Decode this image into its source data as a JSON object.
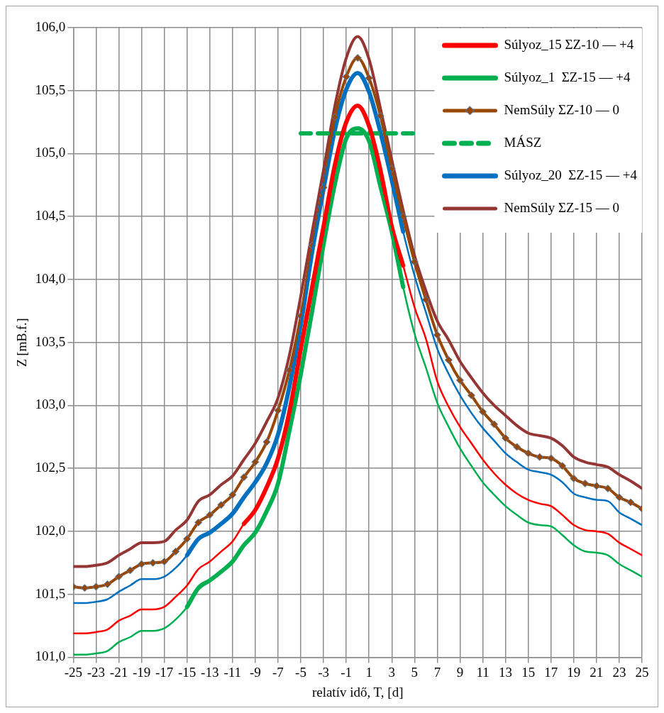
{
  "chart_data": {
    "type": "line",
    "xlabel": "relatív idő, T, [d]",
    "ylabel": "Z [mB.f.]",
    "x": [
      -25,
      -24,
      -23,
      -22,
      -21,
      -20,
      -19,
      -18,
      -17,
      -16,
      -15,
      -14,
      -13,
      -12,
      -11,
      -10,
      -9,
      -8,
      -7,
      -6,
      -5,
      -4,
      -3,
      -2,
      -1,
      0,
      1,
      2,
      3,
      4,
      5,
      6,
      7,
      8,
      9,
      10,
      11,
      12,
      13,
      14,
      15,
      16,
      17,
      18,
      19,
      20,
      21,
      22,
      23,
      24,
      25
    ],
    "xlim": [
      -25,
      25
    ],
    "xticks": [
      -25,
      -23,
      -21,
      -19,
      -17,
      -15,
      -13,
      -11,
      -9,
      -7,
      -5,
      -3,
      -1,
      1,
      3,
      5,
      7,
      9,
      11,
      13,
      15,
      17,
      19,
      21,
      23,
      25
    ],
    "ylim": [
      101,
      106
    ],
    "yticks": [
      {
        "value": 101,
        "label": "101,0"
      },
      {
        "value": 101.5,
        "label": "101,5"
      },
      {
        "value": 102,
        "label": "102,0"
      },
      {
        "value": 102.5,
        "label": "102,5"
      },
      {
        "value": 103,
        "label": "103,0"
      },
      {
        "value": 103.5,
        "label": "103,5"
      },
      {
        "value": 104,
        "label": "104,0"
      },
      {
        "value": 104.5,
        "label": "104,5"
      },
      {
        "value": 105,
        "label": "105,0"
      },
      {
        "value": 105.5,
        "label": "105,5"
      },
      {
        "value": 106,
        "label": "106,0"
      }
    ],
    "grid": true,
    "legend": "top right",
    "marker": "none",
    "line_style": "solid",
    "series": [
      {
        "color": "#ff0000",
        "values": [
          101.19,
          101.19,
          101.2,
          101.22,
          101.29,
          101.33,
          101.38,
          101.38,
          101.4,
          101.48,
          101.57,
          101.7,
          101.76,
          101.84,
          101.92,
          102.06,
          102.17,
          102.35,
          102.58,
          102.95,
          103.45,
          103.94,
          104.42,
          104.91,
          105.25,
          105.38,
          105.22,
          104.87,
          104.42,
          104.11,
          103.78,
          103.53,
          103.19,
          102.99,
          102.83,
          102.7,
          102.57,
          102.46,
          102.37,
          102.3,
          102.25,
          102.22,
          102.2,
          102.13,
          102.05,
          102.01,
          102,
          101.98,
          101.91,
          101.86,
          101.81
        ]
      },
      {
        "color": "#00b050",
        "values": [
          101.02,
          101.02,
          101.03,
          101.05,
          101.12,
          101.16,
          101.21,
          101.21,
          101.23,
          101.3,
          101.4,
          101.55,
          101.61,
          101.68,
          101.76,
          101.89,
          101.99,
          102.16,
          102.38,
          102.8,
          103.25,
          103.75,
          104.28,
          104.76,
          105.12,
          105.2,
          105.1,
          104.74,
          104.38,
          103.94,
          103.57,
          103.3,
          103.02,
          102.83,
          102.66,
          102.52,
          102.39,
          102.29,
          102.2,
          102.13,
          102.07,
          102.05,
          102.04,
          101.97,
          101.89,
          101.84,
          101.83,
          101.81,
          101.74,
          101.69,
          101.64
        ]
      },
      {
        "color": "#0070c0",
        "values": [
          101.43,
          101.43,
          101.44,
          101.46,
          101.52,
          101.57,
          101.62,
          101.62,
          101.64,
          101.71,
          101.81,
          101.94,
          101.99,
          102.06,
          102.14,
          102.27,
          102.39,
          102.54,
          102.77,
          103.15,
          103.64,
          104.22,
          104.72,
          105.19,
          105.51,
          105.64,
          105.49,
          105.17,
          104.79,
          104.38,
          104.03,
          103.74,
          103.45,
          103.25,
          103.08,
          102.94,
          102.82,
          102.72,
          102.62,
          102.55,
          102.49,
          102.47,
          102.45,
          102.39,
          102.3,
          102.27,
          102.25,
          102.24,
          102.15,
          102.1,
          102.05
        ]
      },
      {
        "name": "Súlyoz_15 ΣZ-10 — +4",
        "color": "#ff0000",
        "x": [
          -10,
          -9,
          -8,
          -7,
          -6,
          -5,
          -4,
          -3,
          -2,
          -1,
          0,
          1,
          2,
          3,
          4
        ],
        "values": [
          102.06,
          102.17,
          102.35,
          102.58,
          102.95,
          103.45,
          103.94,
          104.42,
          104.91,
          105.25,
          105.38,
          105.22,
          104.87,
          104.42,
          104.11
        ]
      },
      {
        "name": "Súlyoz_1  ΣZ-15 — +4",
        "color": "#00b050",
        "x": [
          -15,
          -14,
          -13,
          -12,
          -11,
          -10,
          -9,
          -8,
          -7,
          -6,
          -5,
          -4,
          -3,
          -2,
          -1,
          0,
          1,
          2,
          3,
          4
        ],
        "values": [
          101.4,
          101.55,
          101.61,
          101.68,
          101.76,
          101.89,
          101.99,
          102.16,
          102.38,
          102.8,
          103.25,
          103.75,
          104.28,
          104.76,
          105.12,
          105.2,
          105.1,
          104.74,
          104.38,
          103.94
        ]
      },
      {
        "name": "NemSúly ΣZ-10 — 0",
        "color": "#974706",
        "marker": "diamond",
        "values": [
          101.56,
          101.55,
          101.56,
          101.58,
          101.64,
          101.69,
          101.74,
          101.75,
          101.76,
          101.84,
          101.94,
          102.07,
          102.13,
          102.21,
          102.29,
          102.43,
          102.55,
          102.71,
          102.96,
          103.28,
          103.71,
          104.27,
          104.73,
          105.29,
          105.61,
          105.76,
          105.6,
          105.3,
          104.88,
          104.5,
          104.14,
          103.84,
          103.56,
          103.36,
          103.2,
          103.08,
          102.95,
          102.85,
          102.74,
          102.67,
          102.62,
          102.59,
          102.58,
          102.52,
          102.42,
          102.38,
          102.36,
          102.34,
          102.27,
          102.23,
          102.18
        ]
      },
      {
        "name": "MÁSZ",
        "color": "#00b050",
        "line_style": "dashed",
        "x": [
          -5,
          5
        ],
        "values": [
          105.16,
          105.16
        ]
      },
      {
        "name": "Súlyoz_20  ΣZ-15 — +4",
        "color": "#0070c0",
        "x": [
          -15,
          -14,
          -13,
          -12,
          -11,
          -10,
          -9,
          -8,
          -7,
          -6,
          -5,
          -4,
          -3,
          -2,
          -1,
          0,
          1,
          2,
          3,
          4
        ],
        "values": [
          101.81,
          101.94,
          101.99,
          102.06,
          102.14,
          102.27,
          102.39,
          102.54,
          102.77,
          103.15,
          103.64,
          104.22,
          104.72,
          105.19,
          105.51,
          105.64,
          105.49,
          105.17,
          104.79,
          104.38
        ]
      },
      {
        "name": "NemSúly ΣZ-15 — 0",
        "color": "#943634",
        "values": [
          101.72,
          101.72,
          101.73,
          101.75,
          101.81,
          101.86,
          101.91,
          101.91,
          101.92,
          102.01,
          102.09,
          102.24,
          102.29,
          102.37,
          102.44,
          102.57,
          102.7,
          102.87,
          103.06,
          103.4,
          103.87,
          104.38,
          104.87,
          105.38,
          105.76,
          105.93,
          105.75,
          105.36,
          104.95,
          104.55,
          104.19,
          103.91,
          103.67,
          103.52,
          103.35,
          103.22,
          103.1,
          103,
          102.92,
          102.84,
          102.78,
          102.76,
          102.74,
          102.68,
          102.59,
          102.55,
          102.53,
          102.51,
          102.45,
          102.4,
          102.34
        ]
      }
    ]
  }
}
